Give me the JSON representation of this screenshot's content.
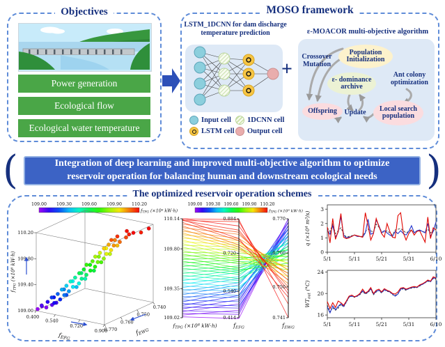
{
  "colors": {
    "navy": "#16307e",
    "dash_border": "#5f8cd8",
    "banner_bg": "#3c63c5",
    "banner_border": "#93b1e3",
    "green_bar": "#4aa647",
    "diagram_bg": "#dee9f6",
    "input_cell": "#8ccfdd",
    "cnn_hatch": "#cfe4ae",
    "lstm_cell": "#f6c544",
    "output_cell": "#e9adad",
    "ellipse_yellow": "#fdf2cc",
    "ellipse_green": "#ecf2d4",
    "ellipse_pink": "#fbdcdf",
    "series_red": "#e10600",
    "series_blue": "#2335cc",
    "series_dashed": "#555555"
  },
  "objectives": {
    "title": "Objectives",
    "items": [
      "Power generation",
      "Ecological flow",
      "Ecological water temperature"
    ]
  },
  "framework": {
    "title": "MOSO framework",
    "plus": "+",
    "lstm": {
      "subtitle": "LSTM_1DCNN for dam discharge temperature prediction",
      "legend": [
        {
          "label": "Input cell",
          "swatch": "input"
        },
        {
          "label": "1DCNN cell",
          "swatch": "cnn"
        },
        {
          "label": "LSTM cell",
          "swatch": "lstm"
        },
        {
          "label": "Output cell",
          "swatch": "output"
        }
      ]
    },
    "moacor": {
      "subtitle": "ε-MOACOR multi-objective algorithm",
      "nodes": [
        {
          "label": "Population Initialization",
          "kind": "ellipse-yellow"
        },
        {
          "label": "Crossover Mutation",
          "kind": "text"
        },
        {
          "label": "ε- dominance archive",
          "kind": "ellipse-green"
        },
        {
          "label": "Ant colony optimization",
          "kind": "text"
        },
        {
          "label": "Offspring",
          "kind": "ellipse-pink"
        },
        {
          "label": "Update",
          "kind": "text"
        },
        {
          "label": "Local search population",
          "kind": "ellipse-pink"
        }
      ]
    }
  },
  "banner": {
    "text": "Integration of deep learning and improved multi-objective algorithm to optimize reservoir operation for balancing human and downstream ecological needs"
  },
  "schemes_title": "The optimized reservoir operation schemes",
  "chart_data": [
    {
      "type": "scatter",
      "name": "pareto-front-3d",
      "axes": {
        "x": {
          "label": "f_EFG",
          "ticks": [
            "0.400",
            "0.540",
            "0.720",
            "0.900"
          ],
          "range": [
            0.4,
            0.9
          ]
        },
        "y": {
          "label": "f_EWG",
          "ticks": [
            "0.770",
            "0.760",
            "0.750",
            "0.740"
          ],
          "range": [
            0.77,
            0.74
          ]
        },
        "z": {
          "label": "f_TPG (×10⁸ kW·h)",
          "ticks": [
            "109.00",
            "109.40",
            "109.80",
            "110.20"
          ],
          "range": [
            109.0,
            110.2
          ]
        }
      },
      "colorbar": {
        "label": "f_TPG (×10⁸ kW·h)",
        "ticks": [
          "109.00",
          "109.30",
          "109.60",
          "109.90",
          "110.20"
        ]
      },
      "points": {
        "f_TPG": [
          109.03,
          109.05,
          109.07,
          109.09,
          109.1,
          109.12,
          109.14,
          109.16,
          109.18,
          109.2,
          109.22,
          109.24,
          109.26,
          109.28,
          109.3,
          109.32,
          109.34,
          109.36,
          109.38,
          109.4,
          109.42,
          109.44,
          109.46,
          109.48,
          109.5,
          109.52,
          109.54,
          109.56,
          109.58,
          109.6,
          109.62,
          109.64,
          109.66,
          109.68,
          109.7,
          109.72,
          109.74,
          109.76,
          109.78,
          109.8,
          109.82,
          109.84,
          109.86,
          109.88,
          109.9,
          109.92,
          109.94,
          109.96,
          109.98,
          110.0,
          110.02,
          110.04,
          110.06,
          110.08,
          110.1,
          110.12,
          110.13,
          110.14,
          110.12,
          110.14
        ],
        "f_EFG": [
          0.41,
          0.45,
          0.43,
          0.48,
          0.44,
          0.5,
          0.46,
          0.52,
          0.47,
          0.54,
          0.49,
          0.55,
          0.51,
          0.57,
          0.52,
          0.58,
          0.54,
          0.6,
          0.55,
          0.61,
          0.56,
          0.63,
          0.58,
          0.64,
          0.59,
          0.65,
          0.6,
          0.66,
          0.62,
          0.68,
          0.63,
          0.69,
          0.64,
          0.7,
          0.65,
          0.71,
          0.67,
          0.72,
          0.68,
          0.74,
          0.69,
          0.75,
          0.7,
          0.76,
          0.71,
          0.77,
          0.73,
          0.78,
          0.74,
          0.79,
          0.75,
          0.81,
          0.76,
          0.82,
          0.78,
          0.83,
          0.79,
          0.85,
          0.87,
          0.88
        ],
        "f_EWG": [
          0.77,
          0.768,
          0.769,
          0.767,
          0.77,
          0.766,
          0.768,
          0.769,
          0.765,
          0.767,
          0.768,
          0.764,
          0.766,
          0.767,
          0.763,
          0.765,
          0.766,
          0.762,
          0.764,
          0.765,
          0.761,
          0.763,
          0.764,
          0.76,
          0.762,
          0.763,
          0.759,
          0.761,
          0.762,
          0.758,
          0.76,
          0.761,
          0.757,
          0.759,
          0.76,
          0.756,
          0.758,
          0.759,
          0.755,
          0.757,
          0.758,
          0.754,
          0.756,
          0.757,
          0.753,
          0.755,
          0.756,
          0.752,
          0.754,
          0.755,
          0.751,
          0.753,
          0.754,
          0.75,
          0.752,
          0.749,
          0.747,
          0.748,
          0.745,
          0.741
        ]
      }
    },
    {
      "type": "line",
      "name": "parallel-coordinates",
      "note": "lines are the same 60 Pareto solutions as pareto-front-3d, colored by f_TPG",
      "axes": [
        {
          "label": "f_TPG (×10⁸ kW·h)",
          "ticks": [
            "109.02",
            "109.35",
            "109.80",
            "110.14"
          ],
          "range": [
            109.02,
            110.14
          ]
        },
        {
          "label": "f_EFG",
          "ticks": [
            "0.414",
            "0.540",
            "0.720",
            "0.884"
          ],
          "range": [
            0.414,
            0.884
          ]
        },
        {
          "label": "f_EWG",
          "ticks": [
            "0.741",
            "0.750",
            "0.760",
            "0.770"
          ],
          "range": [
            0.741,
            0.77
          ]
        }
      ],
      "colorbar": {
        "label": "f_TPG (×10⁸ kW·h)",
        "ticks": [
          "109.00",
          "109.30",
          "109.60",
          "109.90",
          "110.20"
        ]
      }
    },
    {
      "type": "line",
      "name": "discharge-hydrograph",
      "ylabel": "q (×10⁴ m³/s)",
      "yticks": [
        "0",
        "1",
        "2",
        "3"
      ],
      "ylim": [
        0,
        3.3
      ],
      "xticklabels": [
        "5/1",
        "5/11",
        "5/21",
        "5/31",
        "6/10"
      ],
      "x_tick_positions": [
        0,
        10,
        20,
        30,
        40
      ],
      "series": [
        {
          "name": "red",
          "color": "#e10600",
          "dash": null,
          "values": [
            1.75,
            0.65,
            2.35,
            0.9,
            1.45,
            2.7,
            1.05,
            0.95,
            1.0,
            1.1,
            1.2,
            1.15,
            1.1,
            1.05,
            2.75,
            1.85,
            0.85,
            1.3,
            2.35,
            1.8,
            1.3,
            1.05,
            2.0,
            1.45,
            1.05,
            1.0,
            2.55,
            2.75,
            1.35,
            0.85,
            1.3,
            1.55,
            1.2,
            1.45,
            1.5,
            1.1,
            0.7,
            2.45,
            0.95,
            1.7,
            1.55
          ]
        },
        {
          "name": "blue",
          "color": "#2335cc",
          "dash": null,
          "values": [
            1.55,
            1.25,
            1.85,
            1.05,
            1.4,
            2.5,
            1.2,
            1.0,
            1.05,
            1.1,
            1.2,
            1.1,
            1.1,
            1.05,
            1.35,
            2.3,
            1.25,
            1.35,
            2.25,
            1.85,
            1.35,
            1.5,
            1.35,
            1.2,
            1.1,
            1.45,
            1.3,
            1.5,
            1.3,
            1.2,
            1.45,
            1.85,
            1.35,
            1.5,
            1.55,
            1.45,
            1.35,
            2.0,
            1.1,
            1.45,
            2.1
          ]
        },
        {
          "name": "gray-dashed",
          "color": "#555555",
          "dash": "3,2",
          "values": [
            1.7,
            1.45,
            1.95,
            1.3,
            1.5,
            1.7,
            1.3,
            1.05,
            1.1,
            1.15,
            1.2,
            1.15,
            1.1,
            1.1,
            1.45,
            1.6,
            1.5,
            1.4,
            1.95,
            1.75,
            1.45,
            1.4,
            1.5,
            1.35,
            1.2,
            1.55,
            1.6,
            1.65,
            1.5,
            1.35,
            1.45,
            1.55,
            1.4,
            1.45,
            1.5,
            1.45,
            1.4,
            1.6,
            1.35,
            1.5,
            1.55
          ]
        }
      ]
    },
    {
      "type": "line",
      "name": "water-temperature",
      "ylabel": "WT_out (°C)",
      "yticks": [
        "16",
        "20",
        "24"
      ],
      "ylim": [
        15.5,
        24.3
      ],
      "xticklabels": [
        "5/1",
        "5/11",
        "5/21",
        "5/31",
        "6/10"
      ],
      "x_tick_positions": [
        0,
        10,
        20,
        30,
        40
      ],
      "series": [
        {
          "name": "red",
          "color": "#e10600",
          "dash": null,
          "values": [
            18.5,
            17.2,
            18.3,
            17.4,
            18.6,
            18.3,
            17.8,
            18.6,
            19.5,
            19.7,
            19.4,
            19.6,
            20.0,
            20.8,
            20.1,
            20.4,
            21.1,
            20.0,
            20.6,
            20.8,
            20.3,
            20.9,
            20.6,
            20.4,
            20.0,
            19.9,
            20.3,
            21.0,
            21.1,
            20.8,
            21.0,
            21.2,
            21.3,
            21.2,
            21.6,
            21.8,
            22.1,
            22.5,
            22.3,
            23.1,
            22.9
          ]
        },
        {
          "name": "blue",
          "color": "#2335cc",
          "dash": null,
          "values": [
            17.5,
            16.4,
            17.7,
            17.0,
            17.6,
            18.1,
            17.6,
            18.5,
            19.4,
            19.5,
            19.4,
            19.5,
            19.9,
            20.5,
            20.0,
            20.3,
            20.9,
            19.9,
            20.4,
            20.6,
            20.2,
            20.7,
            20.5,
            20.3,
            19.9,
            19.5,
            19.9,
            20.8,
            21.0,
            20.7,
            20.9,
            21.1,
            21.2,
            21.1,
            21.5,
            21.7,
            22.0,
            22.4,
            22.2,
            22.9,
            22.8
          ]
        },
        {
          "name": "black-dashed",
          "color": "#222222",
          "dash": "2.5,2",
          "values": [
            17.8,
            16.6,
            17.4,
            16.9,
            17.3,
            18.0,
            17.5,
            18.4,
            19.3,
            19.5,
            19.3,
            19.5,
            19.8,
            20.4,
            19.9,
            20.2,
            20.8,
            19.8,
            20.3,
            20.6,
            20.1,
            20.7,
            20.4,
            20.3,
            19.8,
            19.6,
            20.0,
            20.7,
            20.9,
            20.6,
            20.9,
            21.0,
            21.1,
            21.1,
            21.4,
            21.7,
            22.0,
            22.3,
            22.2,
            22.8,
            22.7
          ]
        }
      ]
    }
  ]
}
